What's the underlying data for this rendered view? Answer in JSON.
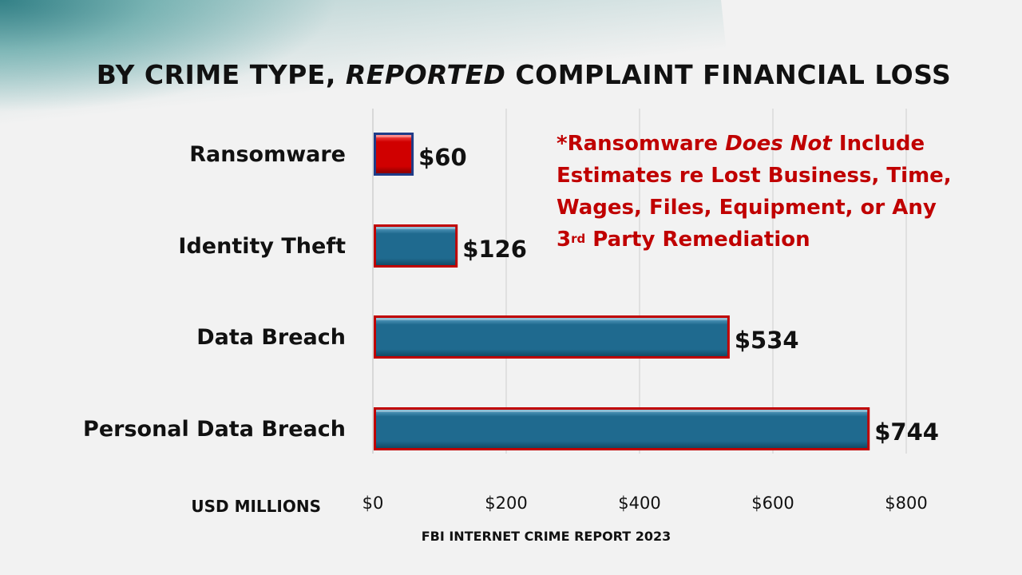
{
  "title_parts": {
    "before": "BY CRIME TYPE, ",
    "italic": "REPORTED",
    "after": " COMPLAINT FINANCIAL LOSS"
  },
  "note": {
    "line1_before": "*Ransomware ",
    "line1_italic": "Does Not",
    "line1_after": " Include",
    "line2": "Estimates re Lost Business, Time,",
    "line3": "Wages, Files, Equipment, or Any",
    "line4_num": "3",
    "line4_sup": "rd",
    "line4_after": " Party Remediation"
  },
  "source": "FBI INTERNET CRIME REPORT 2023",
  "colors": {
    "bar_fill": "#1f6a8f",
    "ransomware_fill": "#d00000",
    "bar_border": "#c00000",
    "ransomware_border": "#1f3c88",
    "note_text": "#c00000"
  },
  "chart_data": {
    "type": "bar",
    "orientation": "horizontal",
    "title": "BY CRIME TYPE, REPORTED COMPLAINT FINANCIAL LOSS",
    "categories": [
      "Ransomware",
      "Identity Theft",
      "Data Breach",
      "Personal Data Breach"
    ],
    "values": [
      60,
      126,
      534,
      744
    ],
    "value_labels": [
      "$60",
      "$126",
      "$534",
      "$744"
    ],
    "xlabel": "USD MILLIONS",
    "xlim": [
      0,
      800
    ],
    "x_ticks": [
      0,
      200,
      400,
      600,
      800
    ],
    "x_tick_labels": [
      "$0",
      "$200",
      "$400",
      "$600",
      "$800"
    ],
    "grid": "vertical"
  }
}
